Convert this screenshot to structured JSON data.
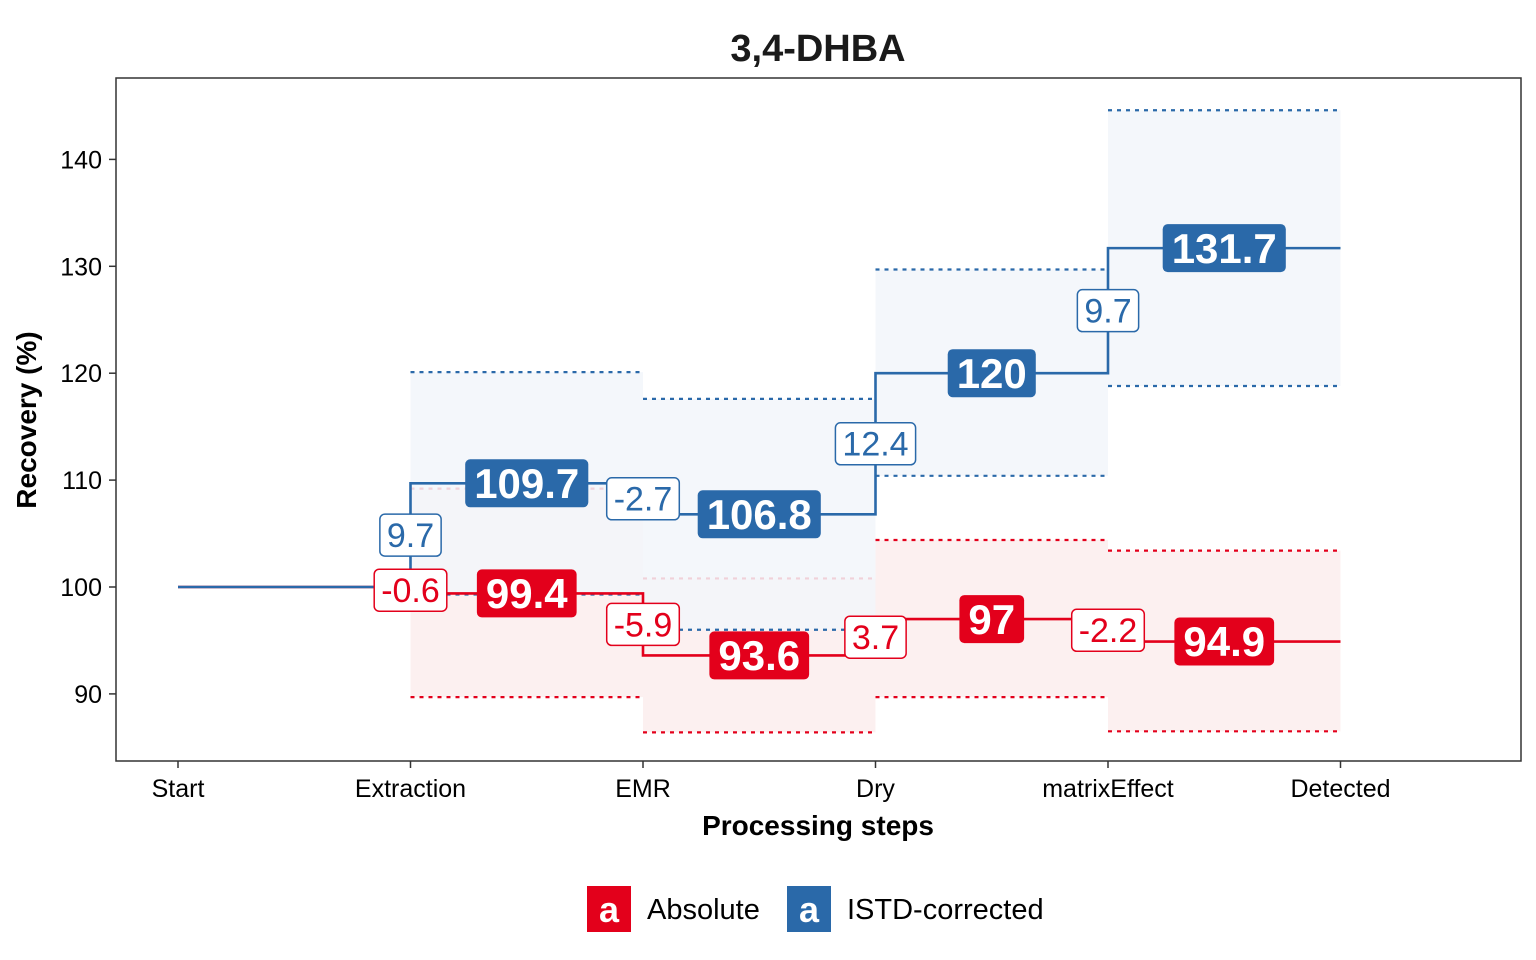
{
  "chart_data": {
    "type": "line",
    "title": "3,4-DHBA",
    "xlabel": "Processing steps",
    "ylabel": "Recovery (%)",
    "categories": [
      "Start",
      "Extraction",
      "EMR",
      "Dry",
      "matrixEffect",
      "Detected"
    ],
    "y_ticks": [
      90,
      100,
      110,
      120,
      130,
      140
    ],
    "ylim": [
      83.5,
      152
    ],
    "grid": false,
    "legend_position": "bottom",
    "series": [
      {
        "name": "Absolute",
        "color": "#e3001b",
        "fill": "#fbeded",
        "step_values": [
          99.4,
          93.6,
          97,
          94.9
        ],
        "step_labels": [
          "99.4",
          "93.6",
          "97",
          "94.9"
        ],
        "changes": [
          -0.6,
          -5.9,
          3.7,
          -2.2
        ],
        "change_labels": [
          "-0.6",
          "-5.9",
          "3.7",
          "-2.2"
        ],
        "upper": [
          109.2,
          100.8,
          104.4,
          103.4
        ],
        "lower": [
          89.7,
          86.4,
          89.7,
          86.5
        ]
      },
      {
        "name": "ISTD-corrected",
        "color": "#2a69a9",
        "fill": "#f2f6fa",
        "step_values": [
          109.7,
          106.8,
          120,
          131.7
        ],
        "step_labels": [
          "109.7",
          "106.8",
          "120",
          "131.7"
        ],
        "changes": [
          9.7,
          -2.7,
          12.4,
          9.7
        ],
        "change_labels": [
          "9.7",
          "-2.7",
          "12.4",
          "9.7"
        ],
        "upper": [
          120.1,
          117.6,
          129.7,
          144.6
        ],
        "lower": [
          99.3,
          96,
          110.4,
          118.8
        ]
      }
    ],
    "start_value": 100,
    "legend_key_glyph": "a"
  }
}
